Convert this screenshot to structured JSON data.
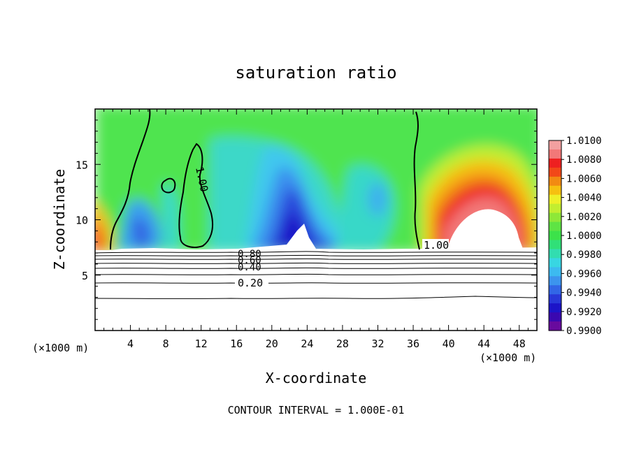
{
  "chart_data": {
    "type": "heatmap",
    "title": "saturation ratio",
    "xlabel": "X-coordinate",
    "ylabel": "Z-coordinate",
    "x_unit": "(×1000 m)",
    "z_unit": "(×1000 m)",
    "xlim": [
      0,
      50
    ],
    "ylim": [
      0,
      20
    ],
    "x_ticks": [
      "4",
      "8",
      "12",
      "16",
      "20",
      "24",
      "28",
      "32",
      "36",
      "40",
      "44",
      "48"
    ],
    "y_ticks": [
      "5",
      "10",
      "15"
    ],
    "colorbar": {
      "labels": [
        "1.0100",
        "1.0080",
        "1.0060",
        "1.0040",
        "1.0020",
        "1.0000",
        "0.9980",
        "0.9960",
        "0.9940",
        "0.9920",
        "0.9900"
      ],
      "colors": [
        "#f2a0a0",
        "#f27878",
        "#ee2020",
        "#f24818",
        "#f28a12",
        "#f6c010",
        "#eef028",
        "#c2ee30",
        "#8ee838",
        "#5ee444",
        "#3ce24a",
        "#30e078",
        "#32ddb0",
        "#38d6e2",
        "#3cbaf0",
        "#3c94ee",
        "#3266e6",
        "#2838d8",
        "#1c14c8",
        "#3a08b0",
        "#680a9e"
      ],
      "min": 0.99,
      "max": 1.01
    },
    "contour_labels": [
      "1.00",
      "1.00",
      "1.00",
      "0.80",
      "0.60",
      "0.40",
      "0.20"
    ],
    "contour_interval_text": "CONTOUR INTERVAL = 1.000E-01",
    "grid": false,
    "legend": "right"
  }
}
